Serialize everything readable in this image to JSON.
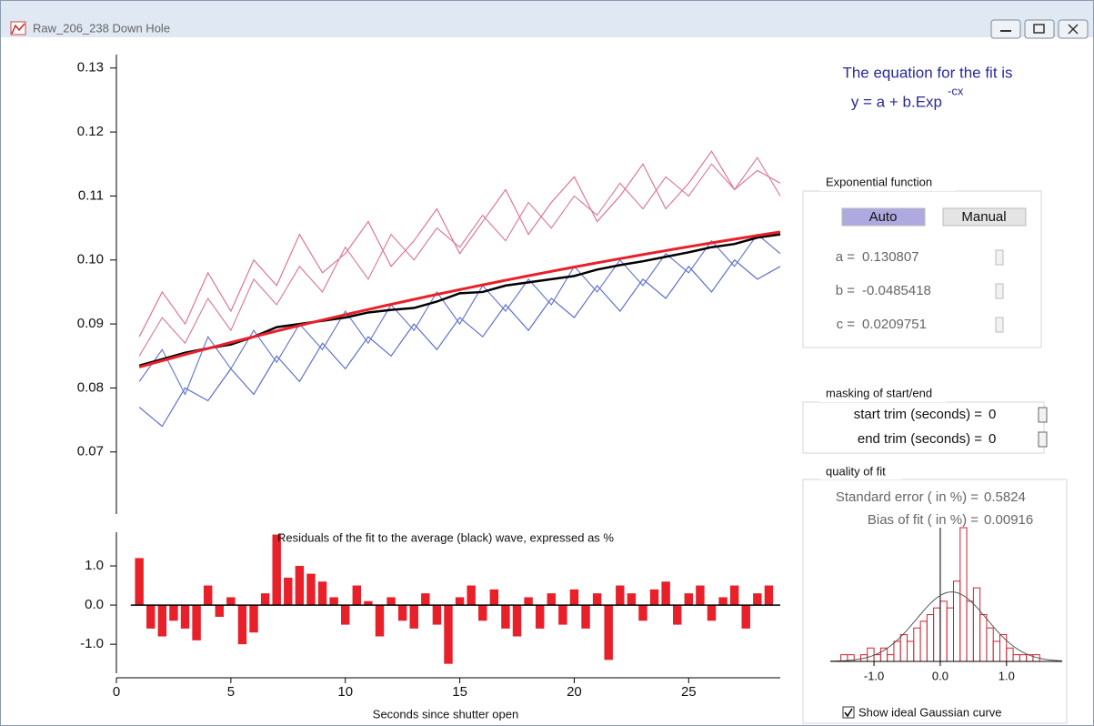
{
  "window": {
    "title": "Raw_206_238 Down Hole"
  },
  "chart_data": [
    {
      "type": "line",
      "x": [
        1,
        2,
        3,
        4,
        5,
        6,
        7,
        8,
        9,
        10,
        11,
        12,
        13,
        14,
        15,
        16,
        17,
        18,
        19,
        20,
        21,
        22,
        23,
        24,
        25,
        26,
        27,
        28,
        29
      ],
      "series": [
        {
          "color": "#e07590",
          "values": [
            0.088,
            0.095,
            0.09,
            0.098,
            0.092,
            0.1,
            0.096,
            0.104,
            0.098,
            0.101,
            0.106,
            0.099,
            0.103,
            0.108,
            0.101,
            0.106,
            0.111,
            0.104,
            0.109,
            0.113,
            0.106,
            0.11,
            0.115,
            0.108,
            0.112,
            0.117,
            0.111,
            0.114,
            0.112
          ]
        },
        {
          "color": "#d9809c",
          "values": [
            0.085,
            0.091,
            0.087,
            0.094,
            0.089,
            0.097,
            0.093,
            0.099,
            0.095,
            0.102,
            0.097,
            0.104,
            0.1,
            0.105,
            0.102,
            0.107,
            0.103,
            0.109,
            0.105,
            0.11,
            0.107,
            0.112,
            0.108,
            0.113,
            0.11,
            0.115,
            0.111,
            0.116,
            0.11
          ]
        },
        {
          "color": "#5b6fcc",
          "values": [
            0.077,
            0.074,
            0.08,
            0.078,
            0.083,
            0.079,
            0.085,
            0.081,
            0.087,
            0.083,
            0.088,
            0.085,
            0.09,
            0.086,
            0.091,
            0.088,
            0.093,
            0.089,
            0.094,
            0.091,
            0.096,
            0.092,
            0.097,
            0.094,
            0.099,
            0.095,
            0.1,
            0.097,
            0.099
          ]
        },
        {
          "color": "#6a7ad0",
          "values": [
            0.081,
            0.086,
            0.079,
            0.088,
            0.083,
            0.089,
            0.084,
            0.09,
            0.086,
            0.092,
            0.087,
            0.093,
            0.089,
            0.095,
            0.09,
            0.096,
            0.092,
            0.097,
            0.093,
            0.099,
            0.095,
            0.1,
            0.096,
            0.101,
            0.098,
            0.103,
            0.099,
            0.104,
            0.101
          ]
        },
        {
          "color": "#000000",
          "values": [
            0.0835,
            0.0845,
            0.0855,
            0.0862,
            0.0868,
            0.088,
            0.0895,
            0.09,
            0.0905,
            0.091,
            0.0918,
            0.0922,
            0.0925,
            0.0935,
            0.0948,
            0.095,
            0.096,
            0.0965,
            0.097,
            0.0975,
            0.0985,
            0.0992,
            0.0998,
            0.1005,
            0.1012,
            0.102,
            0.1025,
            0.1035,
            0.104
          ]
        }
      ],
      "fit_color": "#e8202a",
      "xlim": [
        0,
        29
      ],
      "ylim": [
        0.0603,
        0.1321
      ],
      "yticks": [
        0.07,
        0.08,
        0.09,
        {
          "value": 0.1,
          "label": "0.10"
        },
        0.11,
        0.12,
        0.13
      ]
    },
    {
      "type": "bar",
      "title": "Residuals of the fit to the average (black) wave, expressed as %",
      "x": [
        1,
        1.5,
        2,
        2.5,
        3,
        3.5,
        4,
        4.5,
        5,
        5.5,
        6,
        6.5,
        7,
        7.5,
        8,
        8.5,
        9,
        9.5,
        10,
        10.5,
        11,
        11.5,
        12,
        12.5,
        13,
        13.5,
        14,
        14.5,
        15,
        15.5,
        16,
        16.5,
        17,
        17.5,
        18,
        18.5,
        19,
        19.5,
        20,
        20.5,
        21,
        21.5,
        22,
        22.5,
        23,
        23.5,
        24,
        24.5,
        25,
        25.5,
        26,
        26.5,
        27,
        27.5,
        28,
        28.5
      ],
      "values": [
        1.2,
        -0.6,
        -0.8,
        -0.4,
        -0.6,
        -0.9,
        0.5,
        -0.3,
        0.2,
        -1.0,
        -0.7,
        0.3,
        1.8,
        0.7,
        1.0,
        0.8,
        0.6,
        0.2,
        -0.5,
        0.5,
        0.1,
        -0.8,
        0.2,
        -0.4,
        -0.6,
        0.3,
        -0.5,
        -1.5,
        0.2,
        0.5,
        -0.4,
        0.4,
        -0.6,
        -0.8,
        0.2,
        -0.6,
        0.3,
        -0.5,
        0.4,
        -0.6,
        0.3,
        -1.4,
        0.5,
        0.3,
        -0.4,
        0.4,
        0.6,
        -0.5,
        0.3,
        0.5,
        -0.4,
        0.2,
        0.5,
        -0.6,
        0.3,
        0.5
      ],
      "color": "#e8202a",
      "xlim": [
        0,
        29
      ],
      "xticks": [
        0,
        5,
        10,
        15,
        20,
        25
      ],
      "xlabel": "Seconds since shutter open",
      "ylim": [
        -1.74,
        1.86
      ],
      "yticks": [
        {
          "value": -1,
          "label": "-1.0"
        },
        {
          "value": 0,
          "label": "0.0"
        },
        {
          "value": 1,
          "label": "1.0"
        }
      ]
    },
    {
      "type": "histogram",
      "bins": [
        -1.5,
        -1.4,
        -1.3,
        -1.2,
        -1.1,
        -1,
        -0.9,
        -0.8,
        -0.7,
        -0.6,
        -0.5,
        -0.4,
        -0.3,
        -0.2,
        -0.1,
        0,
        0.1,
        0.2,
        0.3,
        0.4,
        0.5,
        0.6,
        0.7,
        0.8,
        0.9,
        1,
        1.1,
        1.2,
        1.3,
        1.4,
        1.5
      ],
      "values": [
        1,
        1,
        0,
        1,
        2,
        1,
        2,
        1,
        3,
        4,
        3,
        5,
        6,
        7,
        8,
        9,
        8,
        12,
        20,
        9,
        11,
        7,
        5,
        3,
        4,
        2,
        1,
        1,
        1,
        1
      ],
      "color": "#d42030",
      "curve_color": "#555555",
      "xlim": [
        -1.66,
        1.84
      ],
      "ylim": [
        0,
        20
      ],
      "xticks": [
        {
          "value": -1,
          "label": "-1.0"
        },
        {
          "value": 0,
          "label": "0.0"
        },
        {
          "value": 1,
          "label": "1.0"
        }
      ]
    }
  ],
  "equation": {
    "line1": "The equation for the fit is",
    "line2": "y = a + b.Exp",
    "exponent": "-cx"
  },
  "exponential_function": {
    "title": "Exponential function",
    "buttons": [
      {
        "label": "Auto",
        "selected": true
      },
      {
        "label": "Manual",
        "selected": false
      }
    ],
    "params": [
      {
        "label": "a =",
        "value": 0.130807
      },
      {
        "label": "b =",
        "value": -0.0485418
      },
      {
        "label": "c =",
        "value": 0.0209751
      }
    ]
  },
  "masking": {
    "title": "masking of start/end",
    "rows": [
      {
        "label": "start trim (seconds) =",
        "value": 0
      },
      {
        "label": "end trim (seconds) =",
        "value": 0
      }
    ]
  },
  "quality": {
    "title": "quality of fit",
    "rows": [
      {
        "label": "Standard error ( in %) =",
        "value": 0.5824
      },
      {
        "label": "Bias of fit ( in %) =",
        "value": 0.00916
      }
    ],
    "checkbox": {
      "label": "Show ideal Gaussian curve",
      "checked": true
    }
  }
}
